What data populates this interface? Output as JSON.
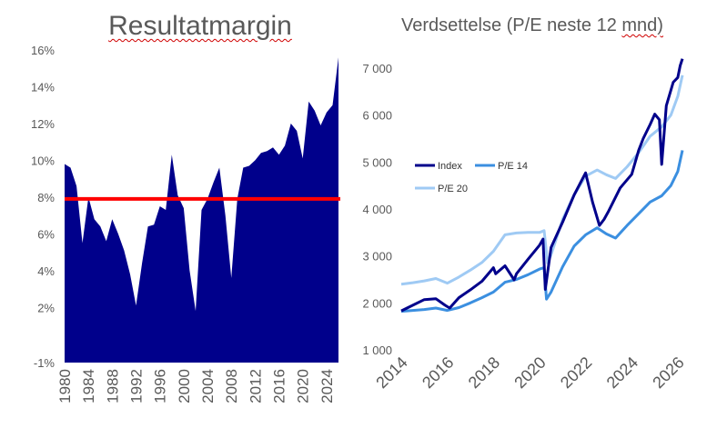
{
  "chart_data": [
    {
      "type": "area",
      "title": "Resultatmargin",
      "ylim": [
        -1,
        16
      ],
      "yticks": [
        "16%",
        "14%",
        "12%",
        "10%",
        "8%",
        "6%",
        "4%",
        "2%",
        "-1%"
      ],
      "ytick_values": [
        16,
        14,
        12,
        10,
        8,
        6,
        4,
        2,
        -1
      ],
      "xlim": [
        1980,
        2026
      ],
      "xticks": [
        "1980",
        "1984",
        "1988",
        "1992",
        "1996",
        "2000",
        "2004",
        "2008",
        "2012",
        "2016",
        "2020",
        "2024"
      ],
      "xtick_values": [
        1980,
        1984,
        1988,
        1992,
        1996,
        2000,
        2004,
        2008,
        2012,
        2016,
        2020,
        2024
      ],
      "reference_line": 7.9,
      "colors": {
        "area": "#00008b",
        "reference": "#ff0000"
      },
      "series": [
        {
          "x": [
            1980,
            1981,
            1982,
            1983,
            1984,
            1985,
            1986,
            1987,
            1988,
            1989,
            1990,
            1991,
            1992,
            1993,
            1994,
            1995,
            1996,
            1997,
            1998,
            1999,
            2000,
            2001,
            2002,
            2003,
            2004,
            2005,
            2006,
            2007,
            2008,
            2009,
            2010,
            2011,
            2012,
            2013,
            2014,
            2015,
            2016,
            2017,
            2018,
            2019,
            2020,
            2021,
            2022,
            2023,
            2024,
            2025,
            2026
          ],
          "y": [
            9.8,
            9.6,
            8.6,
            5.5,
            8.0,
            6.8,
            6.4,
            5.6,
            6.8,
            6.0,
            5.1,
            3.8,
            2.1,
            4.4,
            6.4,
            6.5,
            7.5,
            7.3,
            10.3,
            8.1,
            7.4,
            4.0,
            1.8,
            7.3,
            7.9,
            8.8,
            9.6,
            7.0,
            3.6,
            7.9,
            9.6,
            9.7,
            10.0,
            10.4,
            10.5,
            10.7,
            10.3,
            10.8,
            12.0,
            11.6,
            10.1,
            13.2,
            12.7,
            11.9,
            12.6,
            13.0,
            15.6
          ]
        }
      ]
    },
    {
      "type": "line",
      "title": "Verdsettelse (P/E neste 12 mnd)",
      "ylim": [
        1000,
        7000
      ],
      "yticks": [
        "7 000",
        "6 000",
        "5 000",
        "4 000",
        "3 000",
        "2 000",
        "1 000"
      ],
      "ytick_values": [
        7000,
        6000,
        5000,
        4000,
        3000,
        2000,
        1000
      ],
      "xlim": [
        2014,
        2026.2
      ],
      "xticks": [
        "2014",
        "2016",
        "2018",
        "2020",
        "2022",
        "2024",
        "2026"
      ],
      "xtick_values": [
        2014,
        2016,
        2018,
        2020,
        2022,
        2024,
        2026
      ],
      "legend_position": "center-left",
      "series": [
        {
          "name": "Index",
          "color": "#00008b",
          "x": [
            2014.0,
            2014.5,
            2015.0,
            2015.5,
            2015.9,
            2016.1,
            2016.5,
            2017.0,
            2017.5,
            2018.0,
            2018.1,
            2018.5,
            2018.9,
            2019.0,
            2019.5,
            2020.0,
            2020.15,
            2020.25,
            2020.5,
            2021.0,
            2021.5,
            2022.0,
            2022.3,
            2022.6,
            2022.8,
            2023.0,
            2023.5,
            2024.0,
            2024.3,
            2024.5,
            2024.8,
            2025.0,
            2025.2,
            2025.3,
            2025.5,
            2025.8,
            2026.0,
            2026.1,
            2026.2
          ],
          "y": [
            1830,
            1950,
            2070,
            2090,
            1950,
            1890,
            2110,
            2280,
            2460,
            2750,
            2620,
            2790,
            2490,
            2620,
            2930,
            3230,
            3360,
            2290,
            3180,
            3720,
            4300,
            4770,
            4150,
            3650,
            3780,
            3960,
            4450,
            4740,
            5250,
            5500,
            5800,
            6020,
            5900,
            4950,
            6200,
            6700,
            6800,
            7050,
            7200
          ]
        },
        {
          "name": "P/E 14",
          "color": "#3b8fe0",
          "x": [
            2014.0,
            2014.5,
            2015.0,
            2015.5,
            2016.0,
            2016.5,
            2017.0,
            2017.5,
            2018.0,
            2018.5,
            2019.0,
            2019.5,
            2020.0,
            2020.2,
            2020.3,
            2020.5,
            2021.0,
            2021.5,
            2022.0,
            2022.5,
            2022.9,
            2023.3,
            2023.8,
            2024.3,
            2024.8,
            2025.3,
            2025.7,
            2026.0,
            2026.2
          ],
          "y": [
            1820,
            1840,
            1860,
            1890,
            1840,
            1900,
            2000,
            2110,
            2230,
            2440,
            2500,
            2600,
            2720,
            2750,
            2080,
            2230,
            2770,
            3210,
            3450,
            3600,
            3470,
            3380,
            3650,
            3900,
            4150,
            4280,
            4500,
            4800,
            5250
          ]
        },
        {
          "name": "P/E 20",
          "color": "#9fcaf4",
          "x": [
            2014.0,
            2014.5,
            2015.0,
            2015.5,
            2016.0,
            2016.5,
            2017.0,
            2017.5,
            2018.0,
            2018.5,
            2019.0,
            2019.5,
            2020.0,
            2020.2,
            2020.35,
            2020.5,
            2021.0,
            2021.5,
            2022.0,
            2022.5,
            2022.9,
            2023.3,
            2023.8,
            2024.3,
            2024.8,
            2025.3,
            2025.7,
            2026.0,
            2026.2
          ],
          "y": [
            2400,
            2430,
            2470,
            2520,
            2420,
            2550,
            2700,
            2860,
            3100,
            3450,
            3490,
            3500,
            3500,
            3540,
            2850,
            3020,
            3780,
            4300,
            4700,
            4830,
            4730,
            4650,
            4900,
            5200,
            5550,
            5750,
            6000,
            6400,
            6850
          ]
        }
      ]
    }
  ]
}
